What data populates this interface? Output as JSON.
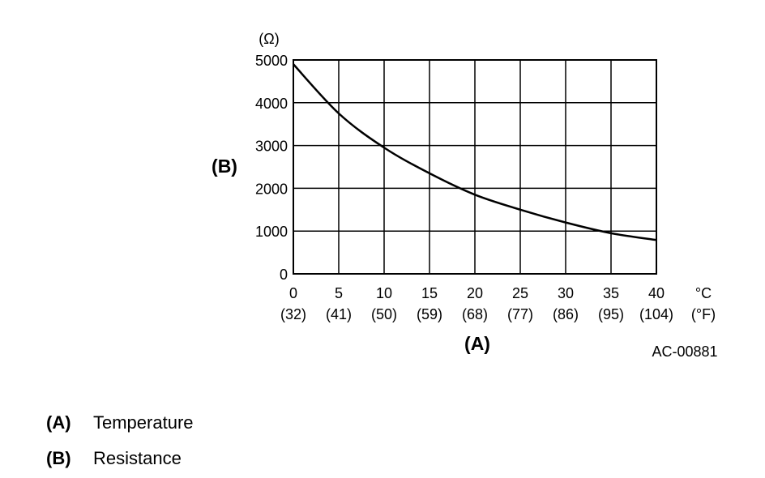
{
  "chart_data": {
    "type": "line",
    "y_unit": "(Ω)",
    "ylabel": "(B)",
    "xlabel": "(A)",
    "x_unit_c": "°C",
    "x_unit_f": "(°F)",
    "xlim": [
      0,
      40
    ],
    "ylim": [
      0,
      5000
    ],
    "x_ticks": [
      0,
      5,
      10,
      15,
      20,
      25,
      30,
      35,
      40
    ],
    "x_tick_labels_c": [
      "0",
      "5",
      "10",
      "15",
      "20",
      "25",
      "30",
      "35",
      "40"
    ],
    "x_tick_labels_f": [
      "(32)",
      "(41)",
      "(50)",
      "(59)",
      "(68)",
      "(77)",
      "(86)",
      "(95)",
      "(104)"
    ],
    "y_ticks": [
      0,
      1000,
      2000,
      3000,
      4000,
      5000
    ],
    "y_tick_labels": [
      "0",
      "1000",
      "2000",
      "3000",
      "4000",
      "5000"
    ],
    "grid": true,
    "series": [
      {
        "x": [
          0,
          5,
          10,
          15,
          20,
          25,
          30,
          35,
          40
        ],
        "y": [
          4900,
          3750,
          2950,
          2350,
          1850,
          1500,
          1200,
          950,
          790
        ]
      }
    ]
  },
  "figure_code": "AC-00881",
  "legend": [
    {
      "key": "(A)",
      "label": "Temperature"
    },
    {
      "key": "(B)",
      "label": "Resistance"
    }
  ]
}
